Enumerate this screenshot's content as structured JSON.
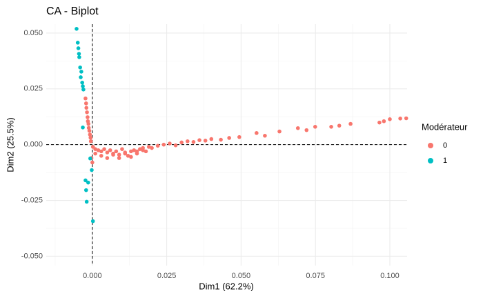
{
  "chart_data": {
    "type": "scatter",
    "title": "CA - Biplot",
    "x_label": "Dim1 (62.2%)",
    "y_label": "Dim2 (25.5%)",
    "legend_title": "Modérateur",
    "legend_position": "right",
    "grid": true,
    "hline": 0,
    "vline": 0,
    "xlim": [
      -0.0155,
      0.1058
    ],
    "ylim": [
      -0.0542,
      0.054
    ],
    "xticks": [
      {
        "value": 0,
        "label": "0.000"
      },
      {
        "value": 0.025,
        "label": "0.025"
      },
      {
        "value": 0.05,
        "label": "0.050"
      },
      {
        "value": 0.075,
        "label": "0.075"
      },
      {
        "value": 0.1,
        "label": "0.100"
      }
    ],
    "yticks": [
      {
        "value": -0.05,
        "label": "-0.050"
      },
      {
        "value": -0.025,
        "label": "-0.025"
      },
      {
        "value": 0,
        "label": "0.000"
      },
      {
        "value": 0.025,
        "label": "0.025"
      },
      {
        "value": 0.05,
        "label": "0.050"
      }
    ],
    "series": [
      {
        "name": "0",
        "color": "#F8766D",
        "x": [
          -0.0023,
          -0.0021,
          -0.002,
          -0.0018,
          -0.0016,
          -0.0015,
          -0.0013,
          -0.0012,
          -0.001,
          -0.0008,
          -0.0006,
          -0.0005,
          0.0002,
          0.001,
          0.002,
          0.003,
          0.004,
          0.005,
          0.006,
          0.007,
          0.008,
          0.009,
          0.01,
          0.011,
          0.012,
          0.013,
          0.014,
          0.015,
          0.016,
          0.017,
          0.018,
          0.019,
          0.02,
          0.001,
          0.003,
          0.005,
          0.007,
          0.009,
          0.011,
          0.013,
          0.015,
          0.017,
          0.022,
          0.024,
          0.026,
          0.028,
          0.03,
          0.032,
          0.034,
          0.036,
          0.038,
          0.04,
          0.0432,
          0.0494,
          0.0552,
          0.0629,
          0.0691,
          0.0749,
          0.0803,
          0.0868,
          0.0965,
          0.1,
          0.1035,
          0.1055,
          -0.0003,
          0.0,
          0.058,
          0.046,
          0.072,
          0.083,
          0.098
        ],
        "y": [
          0.0207,
          0.0185,
          0.0165,
          0.0145,
          0.0123,
          0.0105,
          0.0093,
          0.0075,
          0.0062,
          0.0045,
          0.0031,
          0.0015,
          -0.001,
          -0.002,
          -0.0025,
          -0.003,
          -0.002,
          -0.0035,
          -0.0025,
          -0.004,
          -0.003,
          -0.0045,
          -0.002,
          -0.0035,
          -0.005,
          -0.003,
          -0.0025,
          -0.004,
          -0.002,
          -0.0015,
          -0.003,
          -0.001,
          -0.0015,
          -0.004,
          -0.005,
          -0.006,
          -0.0045,
          -0.006,
          -0.004,
          -0.0055,
          -0.003,
          -0.0025,
          -0.0005,
          0.0,
          0.0005,
          -0.0003,
          0.001,
          0.0015,
          0.0012,
          0.002,
          0.0018,
          0.0025,
          0.0022,
          0.0034,
          0.0052,
          0.0059,
          0.0074,
          0.008,
          0.008,
          0.0093,
          0.0099,
          0.0114,
          0.0117,
          0.0118,
          -0.006,
          -0.008,
          0.004,
          0.003,
          0.0065,
          0.0085,
          0.0105
        ]
      },
      {
        "name": "1",
        "color": "#00BFC4",
        "x": [
          -0.0053,
          -0.0049,
          -0.0047,
          -0.0045,
          -0.0044,
          -0.0041,
          -0.0037,
          -0.0039,
          -0.0034,
          -0.0032,
          -0.003,
          -0.0032,
          -0.0007,
          -0.0002,
          -0.0023,
          -0.0014,
          -0.0021,
          -0.0019,
          0.0002
        ],
        "y": [
          0.0519,
          0.0457,
          0.0432,
          0.0407,
          0.0392,
          0.0346,
          0.0327,
          0.0302,
          0.0278,
          0.0262,
          0.0247,
          0.0077,
          -0.0062,
          -0.0114,
          -0.016,
          -0.017,
          -0.0204,
          -0.0256,
          -0.0343
        ]
      }
    ]
  }
}
